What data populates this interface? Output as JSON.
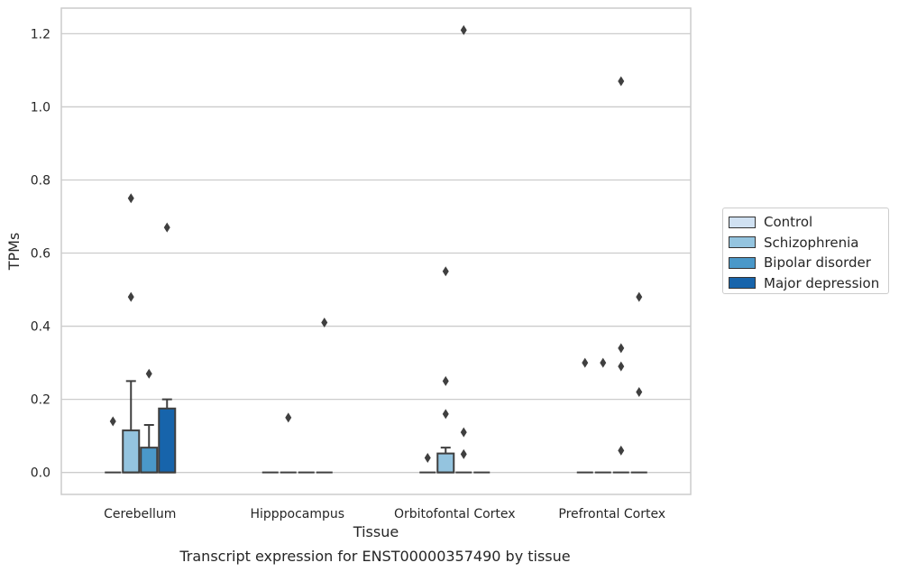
{
  "chart_data": {
    "type": "box",
    "title": "Transcript expression for ENST00000357490 by tissue",
    "xlabel": "Tissue",
    "ylabel": "TPMs",
    "ylim": [
      -0.06,
      1.27
    ],
    "yticks": [
      0.0,
      0.2,
      0.4,
      0.6,
      0.8,
      1.0,
      1.2
    ],
    "ytick_labels": [
      "0.0",
      "0.2",
      "0.4",
      "0.6",
      "0.8",
      "1.0",
      "1.2"
    ],
    "grid": true,
    "legend_position": "right",
    "categories": [
      "Cerebellum",
      "Hipppocampus",
      "Orbitofontal Cortex",
      "Prefrontal Cortex"
    ],
    "series": [
      {
        "name": "Control",
        "color": "#d0e1f2",
        "boxes": [
          {
            "q1": 0,
            "median": 0,
            "q3": 0,
            "whislo": 0,
            "whishi": 0,
            "fliers": [
              0.14
            ]
          },
          {
            "q1": 0,
            "median": 0,
            "q3": 0,
            "whislo": 0,
            "whishi": 0,
            "fliers": []
          },
          {
            "q1": 0,
            "median": 0,
            "q3": 0,
            "whislo": 0,
            "whishi": 0,
            "fliers": [
              0.04
            ]
          },
          {
            "q1": 0,
            "median": 0,
            "q3": 0,
            "whislo": 0,
            "whishi": 0,
            "fliers": [
              0.3
            ]
          }
        ]
      },
      {
        "name": "Schizophrenia",
        "color": "#94c4df",
        "boxes": [
          {
            "q1": 0,
            "median": 0,
            "q3": 0.115,
            "whislo": 0,
            "whishi": 0.25,
            "fliers": [
              0.48,
              0.75
            ]
          },
          {
            "q1": 0,
            "median": 0,
            "q3": 0,
            "whislo": 0,
            "whishi": 0,
            "fliers": [
              0.15
            ]
          },
          {
            "q1": 0,
            "median": 0,
            "q3": 0.052,
            "whislo": 0,
            "whishi": 0.068,
            "fliers": [
              0.16,
              0.25,
              0.55
            ]
          },
          {
            "q1": 0,
            "median": 0,
            "q3": 0,
            "whislo": 0,
            "whishi": 0,
            "fliers": [
              0.3
            ]
          }
        ]
      },
      {
        "name": "Bipolar disorder",
        "color": "#4a98c9",
        "boxes": [
          {
            "q1": 0,
            "median": 0,
            "q3": 0.068,
            "whislo": 0,
            "whishi": 0.13,
            "fliers": [
              0.27
            ]
          },
          {
            "q1": 0,
            "median": 0,
            "q3": 0,
            "whislo": 0,
            "whishi": 0,
            "fliers": []
          },
          {
            "q1": 0,
            "median": 0,
            "q3": 0,
            "whislo": 0,
            "whishi": 0,
            "fliers": [
              0.05,
              0.11,
              1.21
            ]
          },
          {
            "q1": 0,
            "median": 0,
            "q3": 0,
            "whislo": 0,
            "whishi": 0,
            "fliers": [
              0.06,
              0.29,
              0.34,
              1.07
            ]
          }
        ]
      },
      {
        "name": "Major depression",
        "color": "#1764ab",
        "boxes": [
          {
            "q1": 0,
            "median": 0,
            "q3": 0.175,
            "whislo": 0,
            "whishi": 0.2,
            "fliers": [
              0.67
            ]
          },
          {
            "q1": 0,
            "median": 0,
            "q3": 0,
            "whislo": 0,
            "whishi": 0,
            "fliers": [
              0.41
            ]
          },
          {
            "q1": 0,
            "median": 0,
            "q3": 0,
            "whislo": 0,
            "whishi": 0,
            "fliers": []
          },
          {
            "q1": 0,
            "median": 0,
            "q3": 0,
            "whislo": 0,
            "whishi": 0,
            "fliers": [
              0.22,
              0.48
            ]
          }
        ]
      }
    ]
  }
}
